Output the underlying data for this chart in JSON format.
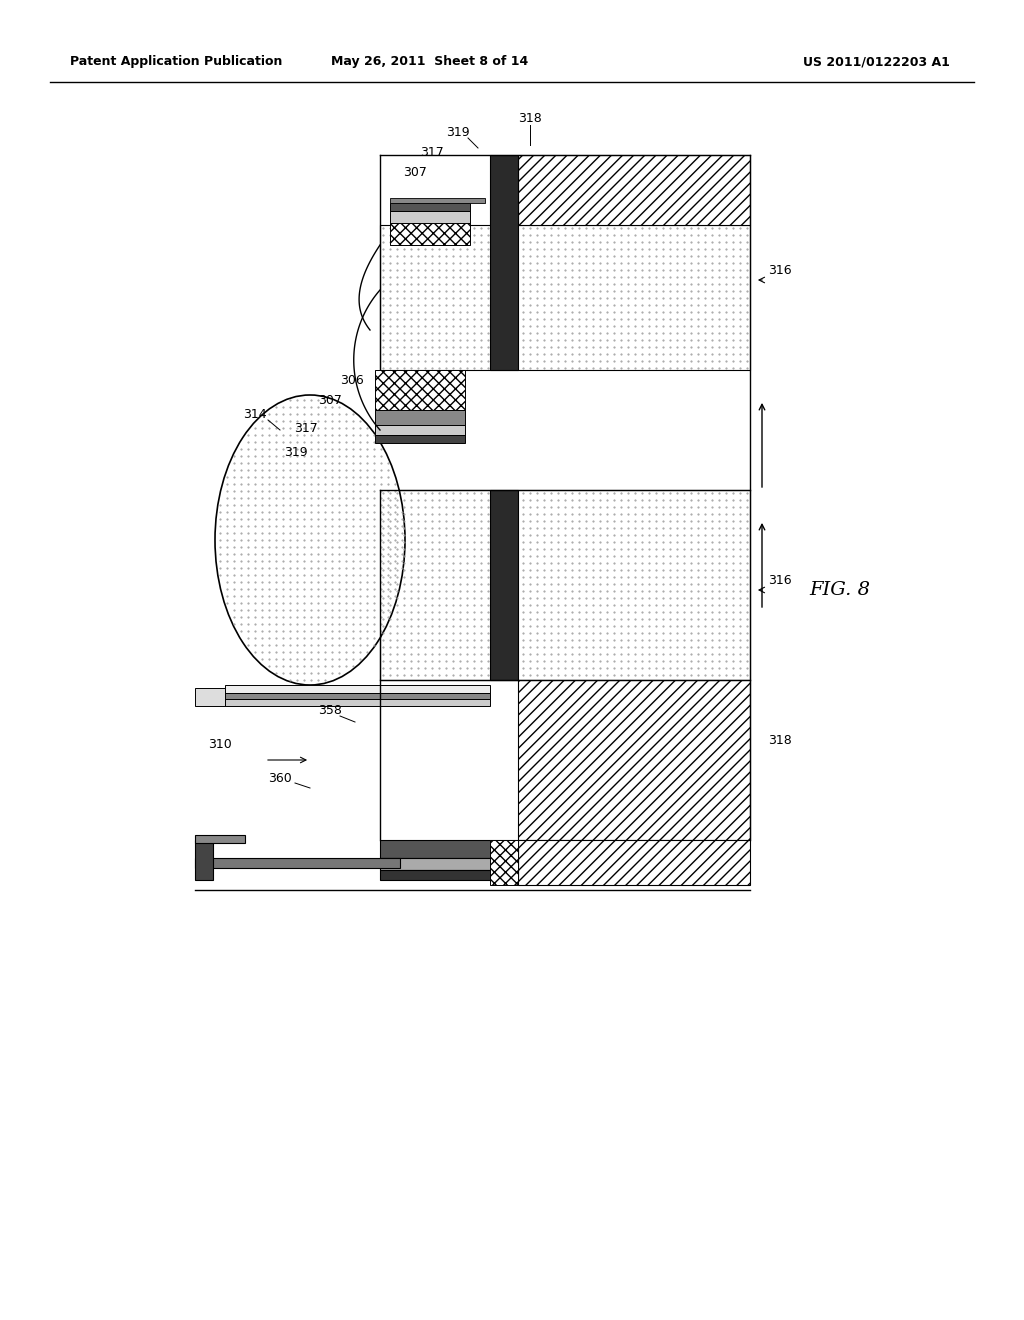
{
  "title_left": "Patent Application Publication",
  "title_center": "May 26, 2011  Sheet 8 of 14",
  "title_right": "US 2011/0122203 A1",
  "fig_label": "FIG. 8",
  "background": "#ffffff"
}
